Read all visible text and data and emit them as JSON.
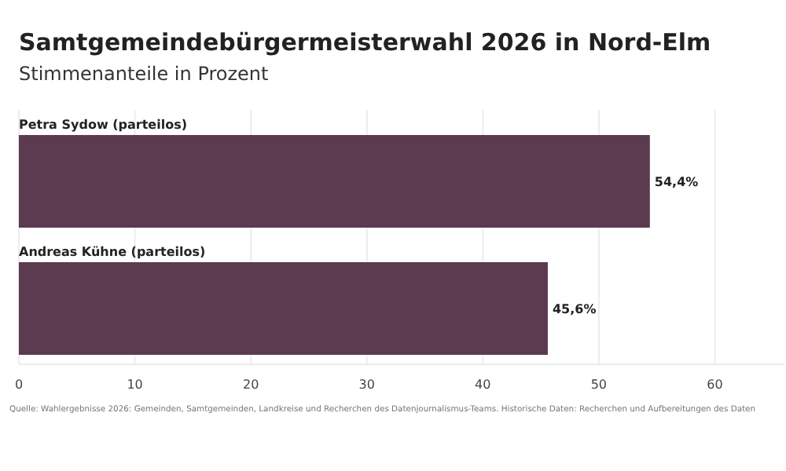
{
  "chart_data": {
    "type": "bar",
    "orientation": "horizontal",
    "title": "Samtgemeindebürgermeisterwahl 2026 in Nord-Elm",
    "subtitle": "Stimmenanteile in Prozent",
    "categories": [
      "Petra Sydow (parteilos)",
      "Andreas Kühne (parteilos)"
    ],
    "values": [
      54.4,
      45.6
    ],
    "value_labels": [
      "54,4%",
      "45,6%"
    ],
    "color": "#5c3a50",
    "xlim": [
      0,
      66
    ],
    "xticks": [
      0,
      10,
      20,
      30,
      40,
      50,
      60
    ],
    "grid": "x",
    "annotations": [
      "Quelle: Wahlergebnisse 2026: Gemeinden, Samtgemeinden, Landkreise und Recherchen des Datenjournalismus-Teams. Historische Daten: Recherchen und Aufbereitungen des Daten"
    ]
  }
}
